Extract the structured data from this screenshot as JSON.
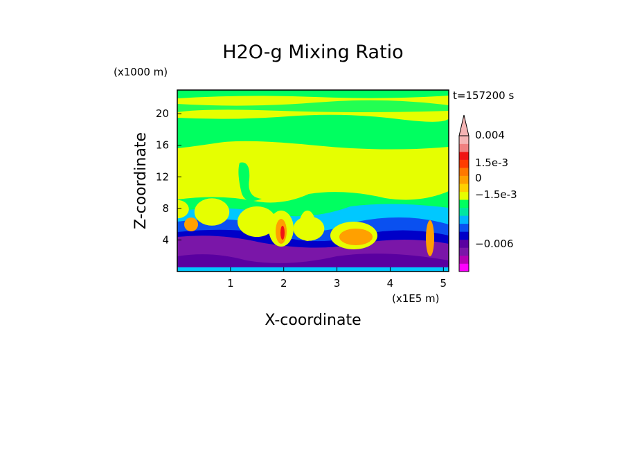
{
  "chart_data": {
    "type": "heatmap",
    "title": "H2O-g Mixing Ratio",
    "xlabel": "X-coordinate",
    "ylabel": "Z-coordinate",
    "x_unit": "(x1E5 m)",
    "y_unit": "(x1000 m)",
    "time_label": "t=157200 s",
    "xlim": [
      0,
      5.1
    ],
    "ylim": [
      0,
      23
    ],
    "x_ticks": [
      1,
      2,
      3,
      4,
      5
    ],
    "y_ticks": [
      4,
      8,
      12,
      16,
      20
    ],
    "x_tick_labels": [
      "1",
      "2",
      "3",
      "4",
      "5"
    ],
    "y_tick_labels": [
      "4",
      "8",
      "12",
      "16",
      "20"
    ],
    "colorbar": {
      "labels": [
        "0.004",
        "1.5e-3",
        "0",
        "−1.5e-3",
        "−0.006"
      ],
      "colors": [
        "#ff00ff",
        "#b400b4",
        "#7a16a8",
        "#5a00a0",
        "#0000c8",
        "#0a50f0",
        "#00b4ff",
        "#00e6a0",
        "#00ff60",
        "#e6ff00",
        "#ffd000",
        "#ffa000",
        "#ff7800",
        "#ff3c00",
        "#f01414",
        "#f08080",
        "#f5b4b4"
      ]
    },
    "palette": {
      "magenta": "#ff00ff",
      "purple": "#7a16a8",
      "blue": "#0000c8",
      "midblue": "#0a50f0",
      "cyan": "#00c8ff",
      "green": "#00ff60",
      "yellow": "#e6ff00",
      "orange": "#ffa000",
      "red": "#f01414"
    },
    "grid": false,
    "legend": "right"
  }
}
